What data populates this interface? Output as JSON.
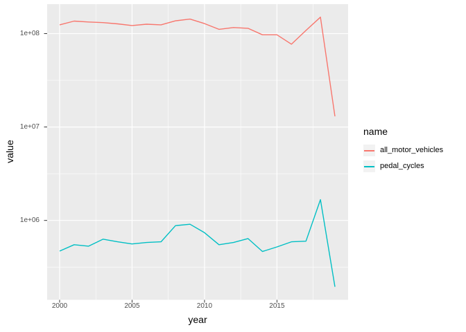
{
  "chart_data": {
    "type": "line",
    "title": "",
    "xlabel": "year",
    "ylabel": "value",
    "legend": {
      "title": "name",
      "position": "right"
    },
    "x": [
      2000,
      2001,
      2002,
      2003,
      2004,
      2005,
      2006,
      2007,
      2008,
      2009,
      2010,
      2011,
      2012,
      2013,
      2014,
      2015,
      2016,
      2017,
      2018,
      2019
    ],
    "series": [
      {
        "name": "all_motor_vehicles",
        "color": "#F8766D",
        "values": [
          124000000,
          136000000,
          133000000,
          131000000,
          127000000,
          122000000,
          126000000,
          124000000,
          137000000,
          143000000,
          128000000,
          111000000,
          116000000,
          114000000,
          97000000,
          97000000,
          77000000,
          108000000,
          150000000,
          13000000
        ]
      },
      {
        "name": "pedal_cycles",
        "color": "#00BFC4",
        "values": [
          470000,
          550000,
          530000,
          630000,
          590000,
          560000,
          580000,
          590000,
          880000,
          910000,
          740000,
          550000,
          580000,
          640000,
          465000,
          520000,
          590000,
          600000,
          1670000,
          195000
        ]
      }
    ],
    "x_axis": {
      "ticks": [
        2000,
        2005,
        2010,
        2015
      ],
      "tick_labels": [
        "2000",
        "2005",
        "2010",
        "2015"
      ],
      "minor": [
        2002.5,
        2007.5,
        2012.5,
        2017.5
      ],
      "range": [
        1999.14,
        2019.91
      ]
    },
    "y_axis": {
      "scale": "log10",
      "ticks": [
        1000000,
        10000000,
        100000000
      ],
      "tick_labels": [
        "1e+06",
        "1e+07",
        "1e+08"
      ],
      "minor_log10": [
        5.5,
        6.5,
        7.5
      ],
      "range_log10": [
        5.15,
        8.315
      ]
    },
    "panel": {
      "bg": "#EBEBEB",
      "grid_color": "#FFFFFF",
      "tick_color": "#333333",
      "grid": "on"
    }
  }
}
